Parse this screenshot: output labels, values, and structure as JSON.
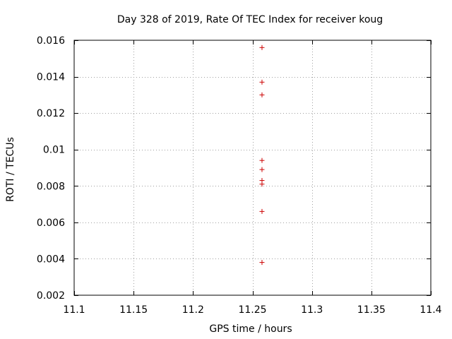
{
  "chart_data": {
    "type": "scatter",
    "title": "Day 328 of 2019, Rate Of TEC Index for receiver koug",
    "xlabel": "GPS time / hours",
    "ylabel": "ROTI / TECUs",
    "xlim": [
      11.1,
      11.4
    ],
    "ylim": [
      0.002,
      0.016
    ],
    "xticks": [
      11.1,
      11.15,
      11.2,
      11.25,
      11.3,
      11.35,
      11.4
    ],
    "xtick_labels": [
      "11.1",
      "11.15",
      "11.2",
      "11.25",
      "11.3",
      "11.35",
      "11.4"
    ],
    "yticks": [
      0.002,
      0.004,
      0.006,
      0.008,
      0.01,
      0.012,
      0.014,
      0.016
    ],
    "ytick_labels": [
      "0.002",
      "0.004",
      "0.006",
      "0.008",
      "0.01",
      "0.012",
      "0.014",
      "0.016"
    ],
    "grid": true,
    "marker": "+",
    "marker_color": "#cc0000",
    "series": [
      {
        "name": "koug",
        "x": [
          11.258,
          11.258,
          11.258,
          11.258,
          11.258,
          11.258,
          11.258,
          11.258,
          11.258
        ],
        "y": [
          0.0156,
          0.0137,
          0.013,
          0.0094,
          0.0089,
          0.0083,
          0.0081,
          0.0066,
          0.0038
        ]
      }
    ]
  }
}
